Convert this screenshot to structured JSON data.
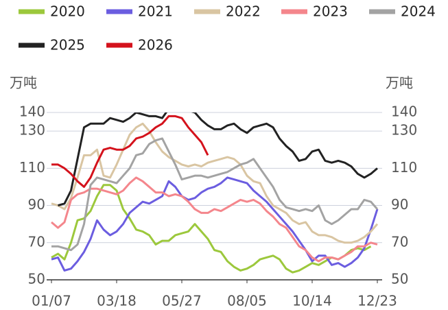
{
  "chart_data": {
    "type": "line",
    "y_label": "万吨",
    "y2_label": "万吨",
    "categories": [
      "01/07",
      null,
      null,
      null,
      null,
      null,
      null,
      null,
      null,
      null,
      "03/18",
      null,
      null,
      null,
      null,
      null,
      null,
      null,
      null,
      null,
      "05/27",
      null,
      null,
      null,
      null,
      null,
      null,
      null,
      null,
      null,
      "08/05",
      null,
      null,
      null,
      null,
      null,
      null,
      null,
      null,
      null,
      "10/14",
      null,
      null,
      null,
      null,
      null,
      null,
      null,
      null,
      null,
      "12/23"
    ],
    "ylim": [
      50,
      140
    ],
    "yticks": [
      50,
      70,
      90,
      110,
      130,
      140
    ],
    "y2lim": [
      50,
      140
    ],
    "y2ticks": [
      50,
      70,
      90,
      110,
      130,
      140
    ],
    "grid": true,
    "legend": "top",
    "series": [
      {
        "name": "2020",
        "color": "#9cc83c",
        "values": [
          62,
          64,
          61,
          70,
          82,
          83,
          87,
          95,
          101,
          101,
          98,
          88,
          83,
          77,
          76,
          74,
          69,
          71,
          71,
          74,
          75,
          76,
          80,
          76,
          72,
          66,
          65,
          60,
          57,
          55,
          56,
          58,
          61,
          62,
          63,
          61,
          56,
          54,
          55,
          57,
          59,
          58,
          60,
          62,
          61,
          63,
          66,
          67,
          66,
          68,
          null
        ]
      },
      {
        "name": "2021",
        "color": "#6b5de0",
        "values": [
          61,
          62,
          55,
          56,
          60,
          65,
          72,
          82,
          77,
          74,
          76,
          80,
          86,
          89,
          92,
          91,
          93,
          95,
          103,
          100,
          95,
          93,
          94,
          97,
          99,
          100,
          102,
          105,
          104,
          103,
          102,
          98,
          95,
          92,
          88,
          84,
          80,
          76,
          71,
          66,
          60,
          63,
          63,
          58,
          59,
          57,
          59,
          62,
          67,
          77,
          88
        ]
      },
      {
        "name": "2022",
        "color": "#d9c5a2",
        "values": [
          91,
          90,
          88,
          94,
          105,
          117,
          117,
          120,
          106,
          105,
          112,
          120,
          128,
          132,
          134,
          130,
          124,
          119,
          116,
          114,
          112,
          111,
          112,
          111,
          113,
          114,
          115,
          116,
          115,
          112,
          106,
          103,
          102,
          95,
          90,
          88,
          86,
          82,
          80,
          81,
          76,
          74,
          74,
          73,
          71,
          70,
          70,
          71,
          73,
          76,
          80
        ]
      },
      {
        "name": "2023",
        "color": "#f4868c",
        "values": [
          81,
          78,
          81,
          93,
          96,
          97,
          99,
          99,
          98,
          97,
          96,
          98,
          102,
          105,
          103,
          100,
          97,
          97,
          95,
          96,
          95,
          92,
          88,
          86,
          86,
          88,
          87,
          89,
          91,
          93,
          92,
          93,
          91,
          87,
          84,
          80,
          78,
          73,
          68,
          66,
          62,
          60,
          62,
          62,
          61,
          63,
          65,
          68,
          68,
          70,
          69
        ]
      },
      {
        "name": "2024",
        "color": "#a3a3a3",
        "values": [
          68,
          68,
          67,
          66,
          69,
          80,
          101,
          105,
          104,
          103,
          102,
          106,
          110,
          117,
          118,
          123,
          125,
          126,
          119,
          112,
          104,
          105,
          106,
          106,
          105,
          106,
          107,
          108,
          110,
          112,
          113,
          115,
          110,
          105,
          100,
          93,
          89,
          88,
          87,
          88,
          87,
          90,
          82,
          80,
          82,
          85,
          88,
          88,
          93,
          92,
          88
        ]
      },
      {
        "name": "2025",
        "color": "#222222",
        "values": [
          null,
          90,
          91,
          98,
          115,
          132,
          134,
          134,
          134,
          137,
          136,
          135,
          137,
          140,
          139,
          138,
          138,
          137,
          142,
          142,
          141,
          141,
          140,
          136,
          133,
          131,
          131,
          133,
          134,
          131,
          129,
          132,
          133,
          134,
          132,
          126,
          122,
          119,
          114,
          115,
          119,
          120,
          114,
          113,
          114,
          113,
          111,
          107,
          105,
          107,
          110
        ]
      },
      {
        "name": "2026",
        "color": "#d4121c",
        "values": [
          112,
          112,
          110,
          107,
          103,
          100,
          105,
          113,
          120,
          121,
          120,
          120,
          122,
          126,
          127,
          129,
          132,
          134,
          138,
          138,
          137,
          132,
          128,
          124,
          117,
          null,
          null,
          null,
          null,
          null,
          null,
          null,
          null,
          null,
          null,
          null,
          null,
          null,
          null,
          null,
          null,
          null,
          null,
          null,
          null,
          null,
          null,
          null,
          null,
          null,
          null
        ]
      }
    ]
  }
}
